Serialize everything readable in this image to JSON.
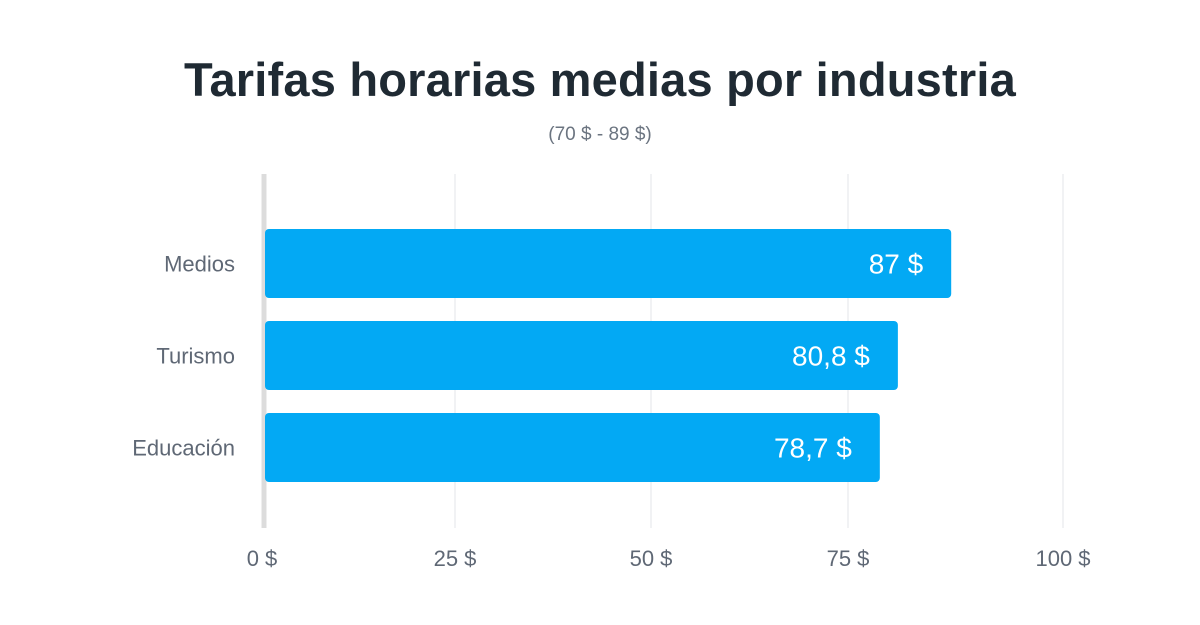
{
  "chart_data": {
    "type": "bar",
    "orientation": "horizontal",
    "title": "Tarifas horarias medias por industria",
    "subtitle": "(70 $ - 89 $)",
    "categories": [
      "Medios",
      "Turismo",
      "Educación"
    ],
    "values": [
      87,
      80.8,
      78.7
    ],
    "value_labels": [
      "87 $",
      "80,8 $",
      "78,7 $"
    ],
    "xlim": [
      0,
      100
    ],
    "xticks": [
      0,
      25,
      50,
      75,
      100
    ],
    "xtick_labels": [
      "0 $",
      "25 $",
      "50 $",
      "75 $",
      "100 $"
    ],
    "xlabel": "",
    "ylabel": "",
    "grid": true,
    "bar_color": "#03a9f4",
    "grid_color": "#e3e6ea",
    "axis_color": "#dcdcdc",
    "label_color": "#5f6875",
    "title_color": "#1f2a33"
  }
}
